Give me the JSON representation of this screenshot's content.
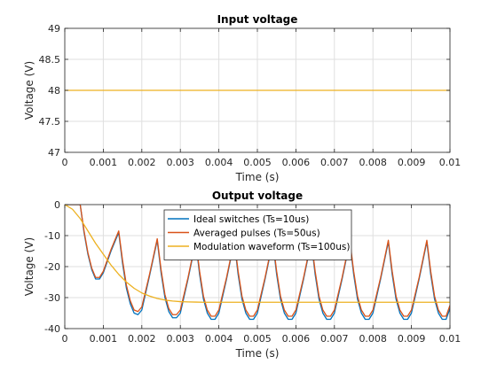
{
  "chart_data": [
    {
      "type": "line",
      "title": "Input voltage",
      "xlabel": "Time (s)",
      "ylabel": "Voltage (V)",
      "xlim": [
        0,
        0.01
      ],
      "ylim": [
        47,
        49
      ],
      "grid": true,
      "xticks": [
        0,
        0.001,
        0.002,
        0.003,
        0.004,
        0.005,
        0.006,
        0.007,
        0.008,
        0.009,
        0.01
      ],
      "xtick_labels": [
        "0",
        "0.001",
        "0.002",
        "0.003",
        "0.004",
        "0.005",
        "0.006",
        "0.007",
        "0.008",
        "0.009",
        "0.01"
      ],
      "yticks": [
        47,
        47.5,
        48,
        48.5,
        49
      ],
      "ytick_labels": [
        "47",
        "47.5",
        "48",
        "48.5",
        "49"
      ],
      "series": [
        {
          "color": "#EDB120",
          "x": [
            0,
            0.01
          ],
          "y": [
            48,
            48
          ]
        }
      ]
    },
    {
      "type": "line",
      "title": "Output voltage",
      "xlabel": "Time (s)",
      "ylabel": "Voltage (V)",
      "xlim": [
        0,
        0.01
      ],
      "ylim": [
        -40,
        0
      ],
      "grid": true,
      "legend_position": "top-center",
      "xticks": [
        0,
        0.001,
        0.002,
        0.003,
        0.004,
        0.005,
        0.006,
        0.007,
        0.008,
        0.009,
        0.01
      ],
      "xtick_labels": [
        "0",
        "0.001",
        "0.002",
        "0.003",
        "0.004",
        "0.005",
        "0.006",
        "0.007",
        "0.008",
        "0.009",
        "0.01"
      ],
      "yticks": [
        -40,
        -30,
        -20,
        -10,
        0
      ],
      "ytick_labels": [
        "-40",
        "-30",
        "-20",
        "-10",
        "0"
      ],
      "series": [
        {
          "name": "Ideal switches (Ts=10us)",
          "color": "#0072BD",
          "x": [
            0,
            0.0004,
            0.0005,
            0.0006,
            0.0007,
            0.0008,
            0.0009,
            0.001,
            0.0012,
            0.0014,
            0.0015,
            0.0016,
            0.0017,
            0.0018,
            0.0019,
            0.002,
            0.0022,
            0.0024,
            0.0025,
            0.0026,
            0.0027,
            0.0028,
            0.0029,
            0.003,
            0.0032,
            0.0034,
            0.0035,
            0.0036,
            0.0037,
            0.0038,
            0.0039,
            0.004,
            0.0042,
            0.0044,
            0.0045,
            0.0046,
            0.0047,
            0.0048,
            0.0049,
            0.005,
            0.0052,
            0.0054,
            0.0055,
            0.0056,
            0.0057,
            0.0058,
            0.0059,
            0.006,
            0.0062,
            0.0064,
            0.0065,
            0.0066,
            0.0067,
            0.0068,
            0.0069,
            0.007,
            0.0072,
            0.0074,
            0.0075,
            0.0076,
            0.0077,
            0.0078,
            0.0079,
            0.008,
            0.0082,
            0.0084,
            0.0085,
            0.0086,
            0.0087,
            0.0088,
            0.0089,
            0.009,
            0.0092,
            0.0094,
            0.0095,
            0.0096,
            0.0097,
            0.0098,
            0.0099,
            0.01
          ],
          "y": [
            0,
            0,
            -9,
            -16,
            -21,
            -24,
            -24,
            -22,
            -15,
            -9,
            -19,
            -27,
            -32,
            -35,
            -35.5,
            -34,
            -23,
            -11.5,
            -22,
            -30,
            -34.5,
            -36.5,
            -36.5,
            -35,
            -24,
            -12,
            -22.5,
            -30.5,
            -35,
            -37,
            -37,
            -35,
            -24,
            -12,
            -22.5,
            -30.5,
            -35,
            -37,
            -37,
            -35,
            -24,
            -12,
            -22.5,
            -30.5,
            -35,
            -37,
            -37,
            -35,
            -24,
            -12,
            -22.5,
            -30.5,
            -35,
            -37,
            -37,
            -35,
            -24,
            -12,
            -22.5,
            -30.5,
            -35,
            -37,
            -37,
            -35,
            -24,
            -12,
            -22.5,
            -30.5,
            -35,
            -37,
            -37,
            -35,
            -24,
            -12,
            -22.5,
            -30.5,
            -35,
            -37,
            -37,
            -33.5
          ]
        },
        {
          "name": "Averaged pulses (Ts=50us)",
          "color": "#D95319",
          "x": [
            0,
            0.0004,
            0.0005,
            0.0006,
            0.0007,
            0.0008,
            0.0009,
            0.001,
            0.0012,
            0.0014,
            0.0015,
            0.0016,
            0.0017,
            0.0018,
            0.0019,
            0.002,
            0.0022,
            0.0024,
            0.0025,
            0.0026,
            0.0027,
            0.0028,
            0.0029,
            0.003,
            0.0032,
            0.0034,
            0.0035,
            0.0036,
            0.0037,
            0.0038,
            0.0039,
            0.004,
            0.0042,
            0.0044,
            0.0045,
            0.0046,
            0.0047,
            0.0048,
            0.0049,
            0.005,
            0.0052,
            0.0054,
            0.0055,
            0.0056,
            0.0057,
            0.0058,
            0.0059,
            0.006,
            0.0062,
            0.0064,
            0.0065,
            0.0066,
            0.0067,
            0.0068,
            0.0069,
            0.007,
            0.0072,
            0.0074,
            0.0075,
            0.0076,
            0.0077,
            0.0078,
            0.0079,
            0.008,
            0.0082,
            0.0084,
            0.0085,
            0.0086,
            0.0087,
            0.0088,
            0.0089,
            0.009,
            0.0092,
            0.0094,
            0.0095,
            0.0096,
            0.0097,
            0.0098,
            0.0099,
            0.01
          ],
          "y": [
            0,
            0,
            -8.5,
            -15.5,
            -20.5,
            -23.5,
            -23.5,
            -21.5,
            -14.5,
            -8.5,
            -18,
            -26,
            -31,
            -34,
            -34.5,
            -33,
            -22.5,
            -11,
            -21,
            -29,
            -33.5,
            -35.5,
            -35.5,
            -34,
            -23.5,
            -11.5,
            -21.5,
            -29.5,
            -34,
            -36,
            -36,
            -34,
            -23.5,
            -11.5,
            -21.5,
            -29.5,
            -34,
            -36,
            -36,
            -34,
            -23.5,
            -11.5,
            -21.5,
            -29.5,
            -34,
            -36,
            -36,
            -34,
            -23.5,
            -11.5,
            -21.5,
            -29.5,
            -34,
            -36,
            -36,
            -34,
            -23.5,
            -11.5,
            -21.5,
            -29.5,
            -34,
            -36,
            -36,
            -34,
            -23.5,
            -11.5,
            -21.5,
            -29.5,
            -34,
            -36,
            -36,
            -34,
            -23.5,
            -11.5,
            -21.5,
            -29.5,
            -34,
            -36,
            -36,
            -32.5
          ]
        },
        {
          "name": "Modulation waveform (Ts=100us)",
          "color": "#EDB120",
          "x": [
            0,
            0.0002,
            0.0004,
            0.0006,
            0.0008,
            0.001,
            0.0012,
            0.0014,
            0.0016,
            0.0018,
            0.002,
            0.0022,
            0.0024,
            0.0026,
            0.0028,
            0.003,
            0.0032,
            0.0034,
            0.0036,
            0.0038,
            0.004,
            0.0045,
            0.005,
            0.006,
            0.007,
            0.008,
            0.009,
            0.01
          ],
          "y": [
            0,
            -1.5,
            -4.5,
            -8.5,
            -12.5,
            -16,
            -19.5,
            -22.5,
            -25,
            -27,
            -28.5,
            -29.5,
            -30.3,
            -30.8,
            -31.1,
            -31.3,
            -31.4,
            -31.45,
            -31.5,
            -31.5,
            -31.5,
            -31.5,
            -31.5,
            -31.5,
            -31.5,
            -31.5,
            -31.5,
            -31.5
          ]
        }
      ]
    }
  ]
}
